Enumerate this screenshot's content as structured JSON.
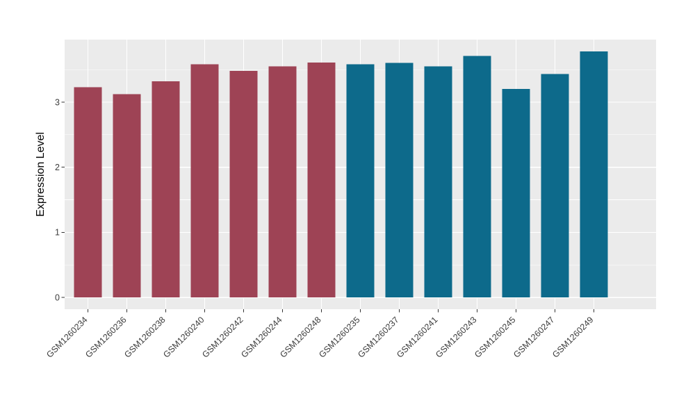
{
  "chart_data": {
    "type": "bar",
    "title": "",
    "xlabel": "",
    "ylabel": "Expression Level",
    "categories": [
      "GSM1260234",
      "GSM1260236",
      "GSM1260238",
      "GSM1260240",
      "GSM1260242",
      "GSM1260244",
      "GSM1260248",
      "GSM1260235",
      "GSM1260237",
      "GSM1260241",
      "GSM1260243",
      "GSM1260245",
      "GSM1260247",
      "GSM1260249"
    ],
    "values": [
      3.23,
      3.12,
      3.32,
      3.58,
      3.48,
      3.55,
      3.61,
      3.58,
      3.6,
      3.55,
      3.71,
      3.2,
      3.43,
      3.78
    ],
    "groups": [
      "group1",
      "group1",
      "group1",
      "group1",
      "group1",
      "group1",
      "group1",
      "group2",
      "group2",
      "group2",
      "group2",
      "group2",
      "group2",
      "group2"
    ],
    "group_colors": {
      "group1": "#9E4355",
      "group2": "#0D6A8B"
    },
    "y_ticks": [
      0,
      1,
      2,
      3
    ],
    "y_minor_ticks": [
      0.5,
      1.5,
      2.5,
      3.5
    ],
    "ylim": [
      -0.18,
      3.96
    ],
    "x_tick_rotation": 45,
    "grid": "on",
    "legend": "none",
    "style": {
      "figure_background": "#FFFFFF",
      "panel_background": "#EBEBEB",
      "grid_color": "#FFFFFF",
      "tick_mark_color": "#333333",
      "axis_text_color": "#3C3C3C",
      "axis_title_color": "#000000"
    }
  }
}
